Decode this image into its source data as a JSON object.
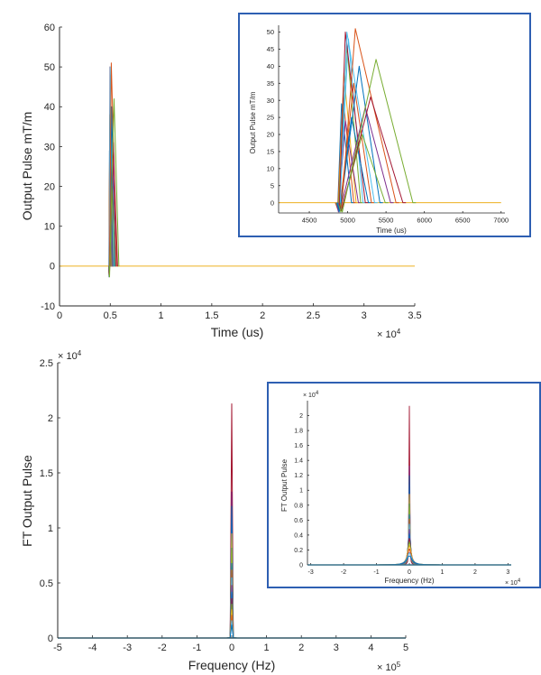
{
  "chart_data": [
    {
      "id": "pulse_main",
      "type": "line",
      "xlabel": "Time (us)",
      "ylabel": "Output Pulse mT/m",
      "x_exponent": "× 10",
      "x_exponent_power": "4",
      "xlim": [
        0,
        3.5
      ],
      "ylim": [
        -10,
        60
      ],
      "xticks": [
        0,
        0.5,
        1,
        1.5,
        2,
        2.5,
        3,
        3.5
      ],
      "xtick_labels": [
        "0",
        "0.5",
        "1",
        "1.5",
        "2",
        "2.5",
        "3",
        "3.5"
      ],
      "yticks": [
        -10,
        0,
        10,
        20,
        30,
        40,
        50,
        60
      ],
      "ytick_labels": [
        "-10",
        "0",
        "10",
        "20",
        "30",
        "40",
        "50",
        "60"
      ],
      "baseline_end_x": 3.5,
      "series": [
        {
          "color": "#0072BD",
          "start": 0.487,
          "peak_x": 0.492,
          "peak_y": 29,
          "end": 0.505
        },
        {
          "color": "#D95319",
          "start": 0.487,
          "peak_x": 0.494,
          "peak_y": 31,
          "end": 0.508
        },
        {
          "color": "#EDB120",
          "start": 0.488,
          "peak_x": 0.495,
          "peak_y": 38,
          "end": 0.511
        },
        {
          "color": "#7E2F8E",
          "start": 0.488,
          "peak_x": 0.497,
          "peak_y": 24,
          "end": 0.514
        },
        {
          "color": "#77AC30",
          "start": 0.488,
          "peak_x": 0.499,
          "peak_y": 46,
          "end": 0.517
        },
        {
          "color": "#4DBEEE",
          "start": 0.489,
          "peak_x": 0.501,
          "peak_y": 48,
          "end": 0.52
        },
        {
          "color": "#A2142F",
          "start": 0.489,
          "peak_x": 0.497,
          "peak_y": 50,
          "end": 0.523
        },
        {
          "color": "#0072BD",
          "start": 0.489,
          "peak_x": 0.505,
          "peak_y": 25,
          "end": 0.527
        },
        {
          "color": "#D95319",
          "start": 0.49,
          "peak_x": 0.508,
          "peak_y": 35,
          "end": 0.531
        },
        {
          "color": "#4DBEEE",
          "start": 0.49,
          "peak_x": 0.499,
          "peak_y": 50,
          "end": 0.535
        },
        {
          "color": "#0072BD",
          "start": 0.49,
          "peak_x": 0.515,
          "peak_y": 40,
          "end": 0.542
        },
        {
          "color": "#77AC30",
          "start": 0.491,
          "peak_x": 0.519,
          "peak_y": 20,
          "end": 0.549
        },
        {
          "color": "#7E2F8E",
          "start": 0.491,
          "peak_x": 0.523,
          "peak_y": 28,
          "end": 0.556
        },
        {
          "color": "#D95319",
          "start": 0.492,
          "peak_x": 0.51,
          "peak_y": 51,
          "end": 0.563
        },
        {
          "color": "#A2142F",
          "start": 0.492,
          "peak_x": 0.53,
          "peak_y": 31,
          "end": 0.572
        },
        {
          "color": "#77AC30",
          "start": 0.493,
          "peak_x": 0.537,
          "peak_y": 42,
          "end": 0.585
        }
      ]
    },
    {
      "id": "pulse_inset",
      "type": "line",
      "xlabel": "Time (us)",
      "ylabel": "Output Pulse mT/m",
      "xlim": [
        4100,
        7050
      ],
      "ylim": [
        -3,
        52
      ],
      "xticks": [
        4500,
        5000,
        5500,
        6000,
        6500,
        7000
      ],
      "xtick_labels": [
        "4500",
        "5000",
        "5500",
        "6000",
        "6500",
        "7000"
      ],
      "yticks": [
        0,
        5,
        10,
        15,
        20,
        25,
        30,
        35,
        40,
        45,
        50
      ],
      "ytick_labels": [
        "0",
        "5",
        "10",
        "15",
        "20",
        "25",
        "30",
        "35",
        "40",
        "45",
        "50"
      ],
      "baseline_end_x": 7000
    },
    {
      "id": "ft_main",
      "type": "line",
      "xlabel": "Frequency (Hz)",
      "ylabel": "FT Output Pulse",
      "x_exponent": "× 10",
      "x_exponent_power": "5",
      "y_exponent": "× 10",
      "y_exponent_power": "4",
      "xlim": [
        -5,
        5
      ],
      "ylim": [
        0,
        2.5
      ],
      "xticks": [
        -5,
        -4,
        -3,
        -2,
        -1,
        0,
        1,
        2,
        3,
        4,
        5
      ],
      "xtick_labels": [
        "-5",
        "-4",
        "-3",
        "-2",
        "-1",
        "0",
        "1",
        "2",
        "3",
        "4",
        "5"
      ],
      "yticks": [
        0,
        0.5,
        1,
        1.5,
        2,
        2.5
      ],
      "ytick_labels": [
        "0",
        "0.5",
        "1",
        "1.5",
        "2",
        "2.5"
      ],
      "series": [
        {
          "color": "#A2142F",
          "peak": 2.13,
          "width": 0.02
        },
        {
          "color": "#7E2F8E",
          "peak": 1.33,
          "width": 0.035
        },
        {
          "color": "#0072BD",
          "peak": 1.2,
          "width": 0.04
        },
        {
          "color": "#EDB120",
          "peak": 0.95,
          "width": 0.05
        },
        {
          "color": "#77AC30",
          "peak": 0.82,
          "width": 0.06
        },
        {
          "color": "#0072BD",
          "peak": 0.68,
          "width": 0.07
        },
        {
          "color": "#D95319",
          "peak": 0.62,
          "width": 0.08
        },
        {
          "color": "#4DBEEE",
          "peak": 0.55,
          "width": 0.09
        },
        {
          "color": "#7E2F8E",
          "peak": 0.48,
          "width": 0.1
        },
        {
          "color": "#0072BD",
          "peak": 0.42,
          "width": 0.115
        },
        {
          "color": "#A2142F",
          "peak": 0.36,
          "width": 0.13
        },
        {
          "color": "#77AC30",
          "peak": 0.31,
          "width": 0.15
        },
        {
          "color": "#EDB120",
          "peak": 0.26,
          "width": 0.17
        },
        {
          "color": "#D95319",
          "peak": 0.21,
          "width": 0.19
        },
        {
          "color": "#4DBEEE",
          "peak": 0.16,
          "width": 0.22
        },
        {
          "color": "#0072BD",
          "peak": 0.12,
          "width": 0.25
        }
      ]
    },
    {
      "id": "ft_inset",
      "type": "line",
      "xlabel": "Frequency (Hz)",
      "ylabel": "FT Output Pulse",
      "x_exponent": "× 10",
      "x_exponent_power": "4",
      "y_exponent": "× 10",
      "y_exponent_power": "4",
      "xlim": [
        -3.1,
        3.1
      ],
      "ylim": [
        0,
        2.2
      ],
      "xticks": [
        -3,
        -2,
        -1,
        0,
        1,
        2,
        3
      ],
      "xtick_labels": [
        "-3",
        "-2",
        "-1",
        "0",
        "1",
        "2",
        "3"
      ],
      "yticks": [
        0,
        0.2,
        0.4,
        0.6,
        0.8,
        1,
        1.2,
        1.4,
        1.6,
        1.8,
        2
      ],
      "ytick_labels": [
        "0",
        "0.2",
        "0.4",
        "0.6",
        "0.8",
        "1",
        "1.2",
        "1.4",
        "1.6",
        "1.8",
        "2"
      ],
      "series_ref": "ft_main"
    }
  ]
}
